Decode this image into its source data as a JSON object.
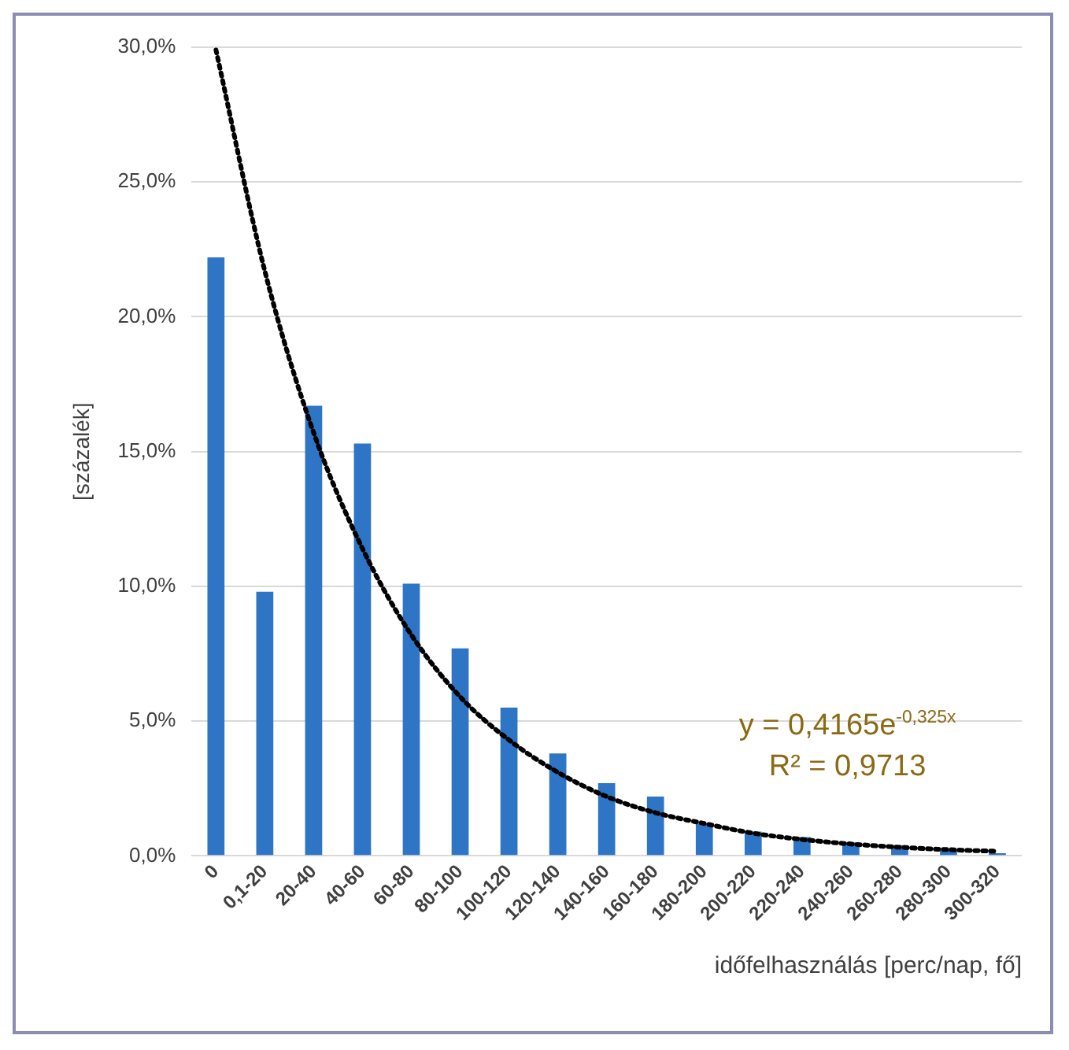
{
  "chart_data": {
    "type": "bar",
    "xlabel": "időfelhasználás [perc/nap, fő]",
    "ylabel": "[százalék]",
    "categories": [
      "0",
      "0,1-20",
      "20-40",
      "40-60",
      "60-80",
      "80-100",
      "100-120",
      "120-140",
      "140-160",
      "160-180",
      "180-200",
      "200-220",
      "220-240",
      "240-260",
      "260-280",
      "280-300",
      "300-320"
    ],
    "series": [
      {
        "color": "#2e75c6",
        "values": [
          22.2,
          9.8,
          16.7,
          15.3,
          10.1,
          7.7,
          5.5,
          3.8,
          2.7,
          2.2,
          1.2,
          0.9,
          0.7,
          0.5,
          0.4,
          0.2,
          0.1
        ]
      },
      {
        "type": "line",
        "color": "#000000",
        "line_style": "dotted",
        "marker": "none",
        "values": [
          29.9,
          21.7,
          15.7,
          11.4,
          8.2,
          5.9,
          4.3,
          3.1,
          2.2,
          1.6,
          1.2,
          0.84,
          0.61,
          0.44,
          0.32,
          0.23,
          0.17
        ]
      }
    ],
    "ylim": [
      0,
      30
    ],
    "yticks": [
      {
        "value": 0,
        "label": "0,0%"
      },
      {
        "value": 5,
        "label": "5,0%"
      },
      {
        "value": 10,
        "label": "10,0%"
      },
      {
        "value": 15,
        "label": "15,0%"
      },
      {
        "value": 20,
        "label": "20,0%"
      },
      {
        "value": 25,
        "label": "25,0%"
      },
      {
        "value": 30,
        "label": "30,0%"
      }
    ],
    "grid": "y",
    "legend": false,
    "annotations": [
      "y = 0,4165e$^{-0,325x}$",
      "R² = 0,9713"
    ]
  }
}
